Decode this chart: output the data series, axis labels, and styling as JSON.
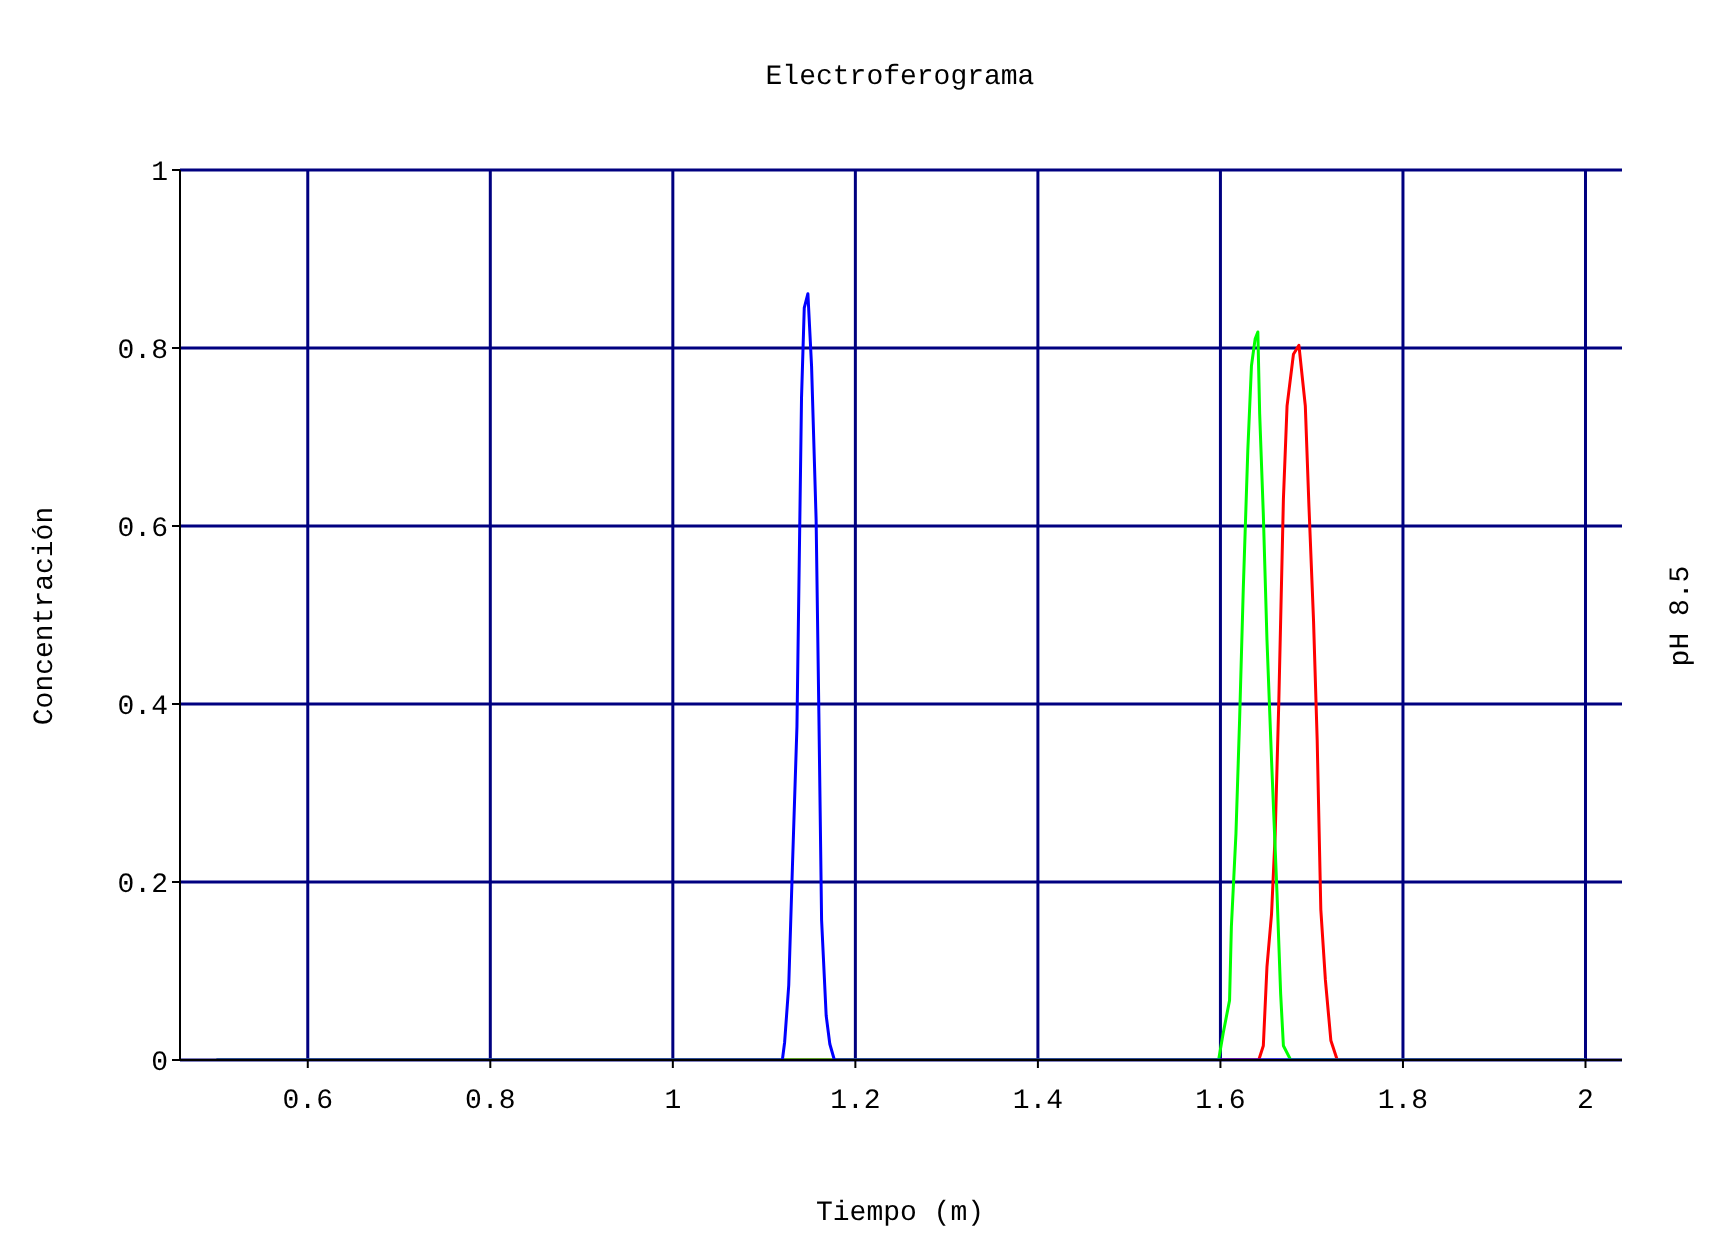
{
  "chart_data": {
    "type": "line",
    "title": "Electroferograma",
    "xlabel": "Tiempo (m)",
    "ylabel": "Concentración",
    "y2label": "pH 8.5",
    "xlim": [
      0.46,
      2.04
    ],
    "xticks": [
      0.6,
      0.8,
      1,
      1.2,
      1.4,
      1.6,
      1.8,
      2
    ],
    "ylim": [
      0,
      1
    ],
    "yticks": [
      0,
      0.2,
      0.4,
      0.6,
      0.8,
      1
    ],
    "grid": true,
    "series": [
      {
        "color": "#ff0000",
        "x": [
          0.5,
          1.642,
          1.647,
          1.651,
          1.656,
          1.66,
          1.664,
          1.669,
          1.673,
          1.68,
          1.686,
          1.693,
          1.697,
          1.702,
          1.706,
          1.71,
          1.715,
          1.721,
          1.728,
          2
        ],
        "values": [
          0,
          0,
          0.016,
          0.105,
          0.164,
          0.254,
          0.404,
          0.63,
          0.735,
          0.793,
          0.803,
          0.735,
          0.622,
          0.494,
          0.36,
          0.169,
          0.09,
          0.022,
          0,
          0
        ]
      },
      {
        "color": "#00ff00",
        "x": [
          0.5,
          1.598,
          1.603,
          1.61,
          1.612,
          1.617,
          1.621,
          1.625,
          1.63,
          1.634,
          1.638,
          1.641,
          1.643,
          1.647,
          1.651,
          1.656,
          1.662,
          1.666,
          1.669,
          1.677,
          2
        ],
        "values": [
          0,
          0,
          0.03,
          0.067,
          0.15,
          0.254,
          0.382,
          0.528,
          0.685,
          0.78,
          0.81,
          0.818,
          0.726,
          0.613,
          0.472,
          0.337,
          0.187,
          0.074,
          0.016,
          0,
          0
        ]
      },
      {
        "color": "#0000ff",
        "x": [
          0.5,
          1.12,
          1.1225,
          1.127,
          1.131,
          1.136,
          1.141,
          1.144,
          1.148,
          1.152,
          1.157,
          1.16,
          1.163,
          1.168,
          1.172,
          1.177,
          2
        ],
        "values": [
          0,
          0,
          0.02,
          0.084,
          0.216,
          0.375,
          0.744,
          0.845,
          0.861,
          0.78,
          0.607,
          0.39,
          0.157,
          0.05,
          0.018,
          0,
          0
        ]
      }
    ]
  }
}
